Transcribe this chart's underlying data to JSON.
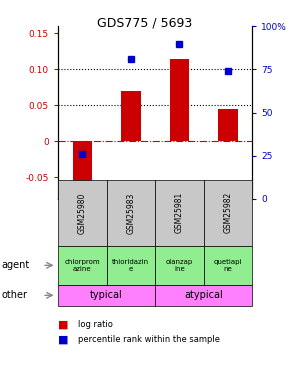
{
  "title": "GDS775 / 5693",
  "samples": [
    "GSM25980",
    "GSM25983",
    "GSM25981",
    "GSM25982"
  ],
  "log_ratios": [
    -0.065,
    0.07,
    0.115,
    0.045
  ],
  "percentile_ranks": [
    0.26,
    0.81,
    0.895,
    0.74
  ],
  "ylim_left": [
    -0.08,
    0.16
  ],
  "ylim_right": [
    0.0,
    1.0
  ],
  "yticks_left": [
    -0.05,
    0.0,
    0.05,
    0.1,
    0.15
  ],
  "yticks_right": [
    0.0,
    0.25,
    0.5,
    0.75,
    1.0
  ],
  "ytick_labels_right": [
    "0",
    "25",
    "50",
    "75",
    "100%"
  ],
  "ytick_labels_left": [
    "-0.05",
    "0",
    "0.05",
    "0.10",
    "0.15"
  ],
  "agent_labels": [
    "chlorprom\nazine",
    "thioridazin\ne",
    "olanzap\nine",
    "quetiapi\nne"
  ],
  "agent_color": "#90EE90",
  "other_groups": [
    [
      "typical",
      2
    ],
    [
      "atypical",
      2
    ]
  ],
  "other_color": "#FF80FF",
  "bar_color": "#CC0000",
  "dot_color": "#0000CC",
  "sample_bg": "#C8C8C8",
  "hline_y": [
    0.05,
    0.1
  ],
  "zero_line_y": 0.0,
  "bar_width": 0.4
}
